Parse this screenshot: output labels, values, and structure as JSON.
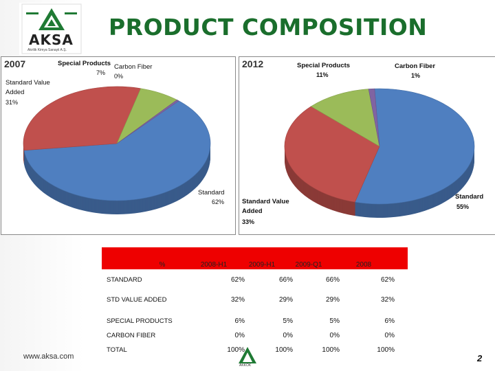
{
  "title": "PRODUCT COMPOSITION",
  "logo": {
    "name": "AKSA",
    "subtitle": "Akrilik Kimya Sanayii A.Ş."
  },
  "footer": {
    "url": "www.aksa.com",
    "page_number": "2",
    "partner_logo": "AKKÖK"
  },
  "colors": {
    "standard": "#4f7fc0",
    "std_value_added": "#c0504d",
    "special_products": "#9bbb59",
    "carbon_fiber": "#8064a2",
    "title": "#1a6e2c",
    "table_header": "#ee0000"
  },
  "chart_data": [
    {
      "type": "pie",
      "year": "2007",
      "title": "",
      "slices": [
        {
          "name": "Standard",
          "label": "62%",
          "value": 62
        },
        {
          "name": "Standard Value Added",
          "label": "31%",
          "value": 31
        },
        {
          "name": "Special Products",
          "label": "7%",
          "value": 7
        },
        {
          "name": "Carbon Fiber",
          "label": "0%",
          "value": 0
        }
      ]
    },
    {
      "type": "pie",
      "year": "2012",
      "title": "",
      "slices": [
        {
          "name": "Standard",
          "label": "55%",
          "value": 55
        },
        {
          "name": "Standard Value Added",
          "label": "33%",
          "value": 33
        },
        {
          "name": "Special Products",
          "label": "11%",
          "value": 11
        },
        {
          "name": "Carbon Fiber",
          "label": "1%",
          "value": 1
        }
      ]
    }
  ],
  "table": {
    "unit_header": "%",
    "columns": [
      "2008-H1",
      "2009-H1",
      "2009-Q1",
      "2008"
    ],
    "rows": [
      {
        "label": "STANDARD",
        "values": [
          "62%",
          "66%",
          "66%",
          "62%"
        ]
      },
      {
        "label": "STD VALUE ADDED",
        "values": [
          "32%",
          "29%",
          "29%",
          "32%"
        ]
      },
      {
        "label": "SPECIAL PRODUCTS",
        "values": [
          "6%",
          "5%",
          "5%",
          "6%"
        ]
      },
      {
        "label": "CARBON FIBER",
        "values": [
          "0%",
          "0%",
          "0%",
          "0%"
        ]
      },
      {
        "label": "TOTAL",
        "values": [
          "100%",
          "100%",
          "100%",
          "100%"
        ]
      }
    ]
  }
}
